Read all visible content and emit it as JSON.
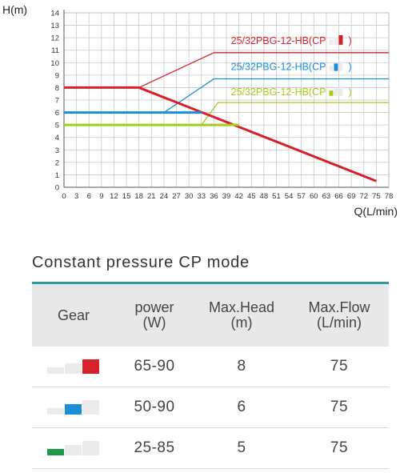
{
  "chart_data": {
    "type": "line",
    "ylabel": "H(m)",
    "xlabel": "Q(L/min)",
    "xlim": [
      0,
      78
    ],
    "ylim": [
      0,
      14
    ],
    "x_ticks": [
      0,
      3,
      6,
      9,
      12,
      15,
      18,
      21,
      24,
      27,
      30,
      33,
      36,
      39,
      42,
      45,
      48,
      51,
      54,
      57,
      60,
      63,
      66,
      69,
      72,
      75,
      78
    ],
    "y_ticks": [
      0,
      1,
      2,
      3,
      4,
      5,
      6,
      7,
      8,
      9,
      10,
      11,
      12,
      13,
      14
    ],
    "grid": true,
    "series": [
      {
        "name": "25/32PBG-12-HB(CP",
        "legend_suffix": ")",
        "color": "#d6202a",
        "gear_level": 3,
        "points": [
          [
            0,
            8
          ],
          [
            18,
            8
          ],
          [
            75,
            0.5
          ]
        ],
        "leader": [
          [
            18,
            8
          ],
          [
            36,
            10.8
          ],
          [
            78,
            10.8
          ]
        ],
        "label_anchor": [
          51.5,
          11.5
        ]
      },
      {
        "name": "25/32PBG-12-HB(CP",
        "legend_suffix": ")",
        "color": "#1a8fd8",
        "gear_level": 2,
        "points": [
          [
            0,
            6
          ],
          [
            33,
            6
          ]
        ],
        "leader": [
          [
            24,
            6
          ],
          [
            36,
            8.7
          ],
          [
            78,
            8.7
          ]
        ],
        "label_anchor": [
          51.5,
          9.4
        ]
      },
      {
        "name": "25/32PBG-12-HB(CP",
        "legend_suffix": ")",
        "color": "#a4cc1c",
        "gear_level": 1,
        "points": [
          [
            0,
            5
          ],
          [
            42,
            5
          ]
        ],
        "leader": [
          [
            33,
            5
          ],
          [
            37,
            6.8
          ],
          [
            78,
            6.8
          ]
        ],
        "label_anchor": [
          51.5,
          7.4
        ]
      }
    ]
  },
  "mode_title": "Constant pressure CP mode",
  "table": {
    "headers": {
      "gear": "Gear",
      "power_line1": "power",
      "power_line2": "(W)",
      "head_line1": "Max.Head",
      "head_line2": "(m)",
      "flow_line1": "Max.Flow",
      "flow_line2": "(L/min)"
    },
    "rows": [
      {
        "gear_color": "#d6202a",
        "gear_level": 3,
        "power": "65-90",
        "head": "8",
        "flow": "75"
      },
      {
        "gear_color": "#1a8fd8",
        "gear_level": 2,
        "power": "50-90",
        "head": "6",
        "flow": "75"
      },
      {
        "gear_color": "#1f9a4a",
        "gear_level": 1,
        "power": "25-85",
        "head": "5",
        "flow": "75"
      }
    ]
  }
}
